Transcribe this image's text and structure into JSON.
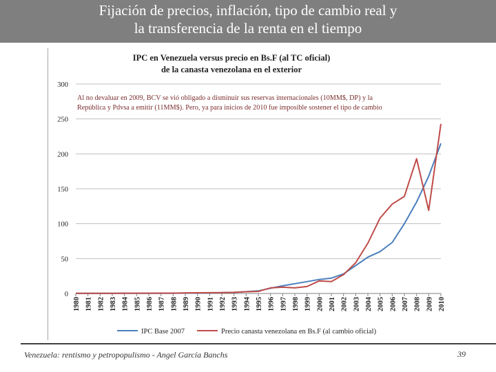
{
  "slide": {
    "title_line1": "Fijación de precios, inflación, tipo de cambio real y",
    "title_line2": "la transferencia de la renta en el tiempo",
    "footer": "Venezuela: rentismo y petropopulismo - Angel García Banchs",
    "page_number": "39"
  },
  "colors": {
    "title_bg": "#7f7f7f",
    "series1": "#4a7ebb",
    "series2": "#be4b48",
    "annotation": "#7b2c2c"
  },
  "chart_data": {
    "type": "line",
    "title": [
      "IPC en Venezuela versus precio en Bs.F (al TC oficial)",
      "de la canasta venezolana en el exterior"
    ],
    "annotation": [
      "Al no devaluar en 2009, BCV se vió obligado a disminuir sus reservas internacionales (10MM$, DP) y la",
      "República y Pdvsa a emitir (11MM$). Pero, ya para inicios de 2010 fue imposible sostener el tipo de cambio"
    ],
    "x": [
      "1980",
      "1981",
      "1982",
      "1983",
      "1984",
      "1985",
      "1986",
      "1987",
      "1988",
      "1989",
      "1990",
      "1991",
      "1992",
      "1993",
      "1994",
      "1995",
      "1996",
      "1997",
      "1998",
      "1999",
      "2000",
      "2001",
      "2002",
      "2003",
      "2004",
      "2005",
      "2006",
      "2007",
      "2008",
      "2009",
      "2010"
    ],
    "ylim": [
      0,
      300
    ],
    "yticks": [
      0,
      50,
      100,
      150,
      200,
      250,
      300
    ],
    "grid": true,
    "legend_position": "bottom",
    "series": [
      {
        "name": "IPC Base 2007",
        "values": [
          0.1,
          0.1,
          0.1,
          0.1,
          0.2,
          0.2,
          0.2,
          0.3,
          0.3,
          0.5,
          0.6,
          0.8,
          1.1,
          1.6,
          2.6,
          3.7,
          7.5,
          11,
          14,
          17,
          20,
          22,
          28,
          40,
          52,
          60,
          73,
          100,
          131,
          168,
          215
        ]
      },
      {
        "name": "Precio canasta venezolana en Bs.F (al cambio oficial)",
        "values": [
          0.3,
          0.3,
          0.3,
          0.3,
          0.4,
          0.4,
          0.4,
          0.5,
          0.5,
          0.9,
          1.0,
          1.1,
          1.3,
          1.6,
          2.5,
          3.0,
          8,
          9,
          8,
          10,
          18,
          17,
          27,
          44,
          72,
          108,
          128,
          139,
          193,
          119,
          243
        ]
      }
    ]
  }
}
